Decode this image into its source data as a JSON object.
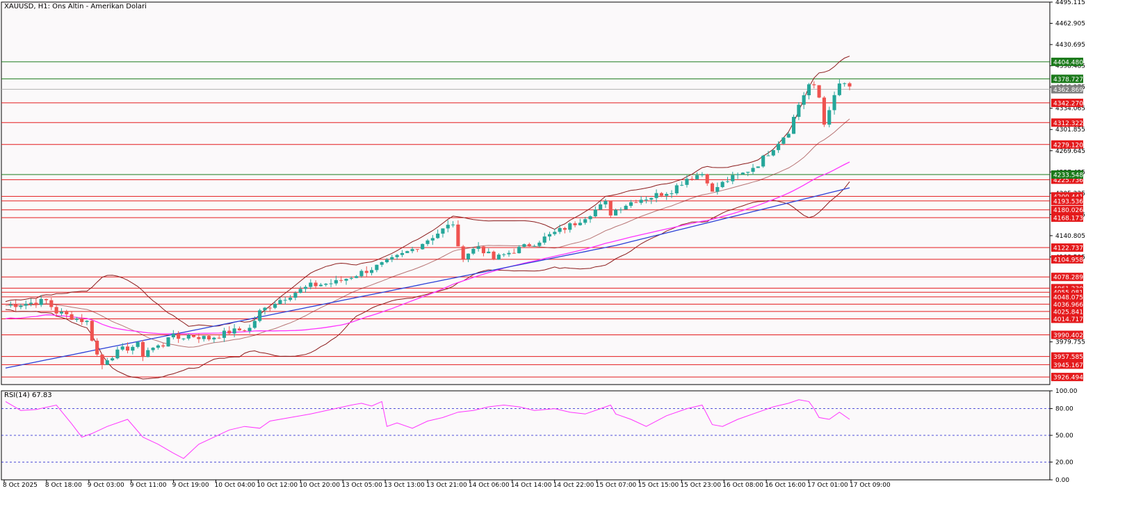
{
  "chart_data": {
    "type": "candlestick",
    "symbol": "XAUUSD",
    "timeframe": "H1",
    "description": "Ons Altin - Amerikan Dolari",
    "header": "XAUUSD, H1:  Ons Altin - Amerikan Dolari",
    "price_axis_ticks": [
      "4495.115",
      "4462.905",
      "4430.695",
      "4398.485",
      "4366.275",
      "4334.065",
      "4301.855",
      "4269.645",
      "4237.435",
      "4205.225",
      "4173.015",
      "4140.805",
      "4108.595",
      "3979.755"
    ],
    "hlines_red": [
      {
        "label": "4342.270",
        "value": 4342.27
      },
      {
        "label": "4312.322",
        "value": 4312.322
      },
      {
        "label": "4279.120",
        "value": 4279.12
      },
      {
        "label": "4225.736",
        "value": 4225.736
      },
      {
        "label": "4200.441",
        "value": 4200.441
      },
      {
        "label": "4193.536",
        "value": 4193.536
      },
      {
        "label": "4180.026",
        "value": 4180.026
      },
      {
        "label": "4168.173",
        "value": 4168.173
      },
      {
        "label": "4122.737",
        "value": 4122.737
      },
      {
        "label": "4104.958",
        "value": 4104.958
      },
      {
        "label": "4078.289",
        "value": 4078.289
      },
      {
        "label": "4061.230",
        "value": 4061.23
      },
      {
        "label": "4055.081",
        "value": 4055.081
      },
      {
        "label": "4048.075",
        "value": 4048.075
      },
      {
        "label": "4036.966",
        "value": 4036.966
      },
      {
        "label": "4025.841",
        "value": 4025.841
      },
      {
        "label": "4014.717",
        "value": 4014.717
      },
      {
        "label": "3990.402",
        "value": 3990.402
      },
      {
        "label": "3957.585",
        "value": 3957.585
      },
      {
        "label": "3945.167",
        "value": 3945.167
      },
      {
        "label": "3926.494",
        "value": 3926.494
      }
    ],
    "hlines_green": [
      {
        "label": "4404.480",
        "value": 4404.48
      },
      {
        "label": "4378.727",
        "value": 4378.727
      },
      {
        "label": "4233.548",
        "value": 4233.548
      }
    ],
    "current_price": {
      "label": "4362.869",
      "value": 4362.869
    },
    "x_labels": [
      "8 Oct 2025",
      "8 Oct 18:00",
      "9 Oct 03:00",
      "9 Oct 11:00",
      "9 Oct 19:00",
      "10 Oct 04:00",
      "10 Oct 12:00",
      "10 Oct 20:00",
      "13 Oct 05:00",
      "13 Oct 13:00",
      "13 Oct 21:00",
      "14 Oct 06:00",
      "14 Oct 14:00",
      "14 Oct 22:00",
      "15 Oct 07:00",
      "15 Oct 15:00",
      "15 Oct 23:00",
      "16 Oct 08:00",
      "16 Oct 16:00",
      "17 Oct 01:00",
      "17 Oct 09:00"
    ],
    "close_path": [
      [
        0,
        4035
      ],
      [
        4,
        4038
      ],
      [
        8,
        4042
      ],
      [
        10,
        4025
      ],
      [
        12,
        4020
      ],
      [
        16,
        4010
      ],
      [
        18,
        3960
      ],
      [
        19,
        3945
      ],
      [
        20,
        3955
      ],
      [
        23,
        3968
      ],
      [
        26,
        3975
      ],
      [
        27,
        3960
      ],
      [
        28,
        3968
      ],
      [
        31,
        3975
      ],
      [
        32,
        3990
      ],
      [
        34,
        3985
      ],
      [
        36,
        3990
      ],
      [
        40,
        3985
      ],
      [
        44,
        3995
      ],
      [
        48,
        4000
      ],
      [
        50,
        4025
      ],
      [
        53,
        4040
      ],
      [
        57,
        4055
      ],
      [
        60,
        4065
      ],
      [
        65,
        4070
      ],
      [
        70,
        4085
      ],
      [
        75,
        4100
      ],
      [
        80,
        4120
      ],
      [
        85,
        4145
      ],
      [
        88,
        4160
      ],
      [
        89,
        4120
      ],
      [
        90,
        4110
      ],
      [
        93,
        4125
      ],
      [
        96,
        4105
      ],
      [
        99,
        4115
      ],
      [
        104,
        4130
      ],
      [
        108,
        4145
      ],
      [
        112,
        4160
      ],
      [
        115,
        4175
      ],
      [
        118,
        4190
      ],
      [
        119,
        4175
      ],
      [
        121,
        4185
      ],
      [
        124,
        4195
      ],
      [
        127,
        4200
      ],
      [
        131,
        4210
      ],
      [
        134,
        4228
      ],
      [
        137,
        4235
      ],
      [
        138,
        4225
      ],
      [
        139,
        4205
      ],
      [
        140,
        4215
      ],
      [
        142,
        4225
      ],
      [
        145,
        4235
      ],
      [
        148,
        4250
      ],
      [
        151,
        4275
      ],
      [
        154,
        4300
      ],
      [
        156,
        4340
      ],
      [
        158,
        4370
      ],
      [
        159,
        4365
      ],
      [
        160,
        4350
      ],
      [
        161,
        4310
      ],
      [
        162,
        4335
      ],
      [
        163,
        4350
      ],
      [
        164,
        4370
      ],
      [
        165,
        4372
      ],
      [
        166,
        4363
      ]
    ],
    "indicators": [
      "Bollinger Bands (red)",
      "MA (magenta)",
      "MA (blue)"
    ],
    "rsi": {
      "label": "RSI(14) 67.83",
      "period": 14,
      "value": 67.83,
      "levels": [
        80,
        50,
        20
      ],
      "y_ticks": [
        "100.00",
        "80.00",
        "50.00",
        "20.00",
        "0.00"
      ],
      "values": [
        [
          0,
          88
        ],
        [
          3,
          78
        ],
        [
          6,
          79
        ],
        [
          10,
          84
        ],
        [
          13,
          63
        ],
        [
          15,
          48
        ],
        [
          17,
          52
        ],
        [
          20,
          60
        ],
        [
          24,
          68
        ],
        [
          27,
          48
        ],
        [
          30,
          40
        ],
        [
          33,
          30
        ],
        [
          35,
          24
        ],
        [
          38,
          40
        ],
        [
          41,
          48
        ],
        [
          44,
          56
        ],
        [
          47,
          60
        ],
        [
          50,
          58
        ],
        [
          52,
          66
        ],
        [
          56,
          70
        ],
        [
          60,
          74
        ],
        [
          64,
          79
        ],
        [
          68,
          84
        ],
        [
          70,
          86
        ],
        [
          72,
          83
        ],
        [
          74,
          88
        ],
        [
          75,
          60
        ],
        [
          77,
          64
        ],
        [
          80,
          58
        ],
        [
          83,
          66
        ],
        [
          86,
          70
        ],
        [
          89,
          76
        ],
        [
          92,
          78
        ],
        [
          95,
          82
        ],
        [
          98,
          84
        ],
        [
          101,
          82
        ],
        [
          104,
          78
        ],
        [
          108,
          80
        ],
        [
          111,
          76
        ],
        [
          114,
          74
        ],
        [
          117,
          80
        ],
        [
          119,
          84
        ],
        [
          120,
          74
        ],
        [
          123,
          68
        ],
        [
          126,
          60
        ],
        [
          130,
          72
        ],
        [
          134,
          80
        ],
        [
          137,
          84
        ],
        [
          139,
          62
        ],
        [
          141,
          60
        ],
        [
          144,
          68
        ],
        [
          148,
          76
        ],
        [
          151,
          82
        ],
        [
          154,
          86
        ],
        [
          156,
          90
        ],
        [
          158,
          88
        ],
        [
          159,
          80
        ],
        [
          160,
          70
        ],
        [
          162,
          68
        ],
        [
          164,
          76
        ],
        [
          166,
          68
        ]
      ]
    },
    "colors": {
      "up": "#26a69a",
      "down": "#ef5350",
      "bb": "#8b1a1a",
      "ma_magenta": "#ff33ff",
      "ma_blue": "#2a3fd6",
      "red_line": "#e41a1c",
      "green_line": "#1b7a1b",
      "rsi": "#ff33ff",
      "current_tag": "#808080"
    }
  }
}
